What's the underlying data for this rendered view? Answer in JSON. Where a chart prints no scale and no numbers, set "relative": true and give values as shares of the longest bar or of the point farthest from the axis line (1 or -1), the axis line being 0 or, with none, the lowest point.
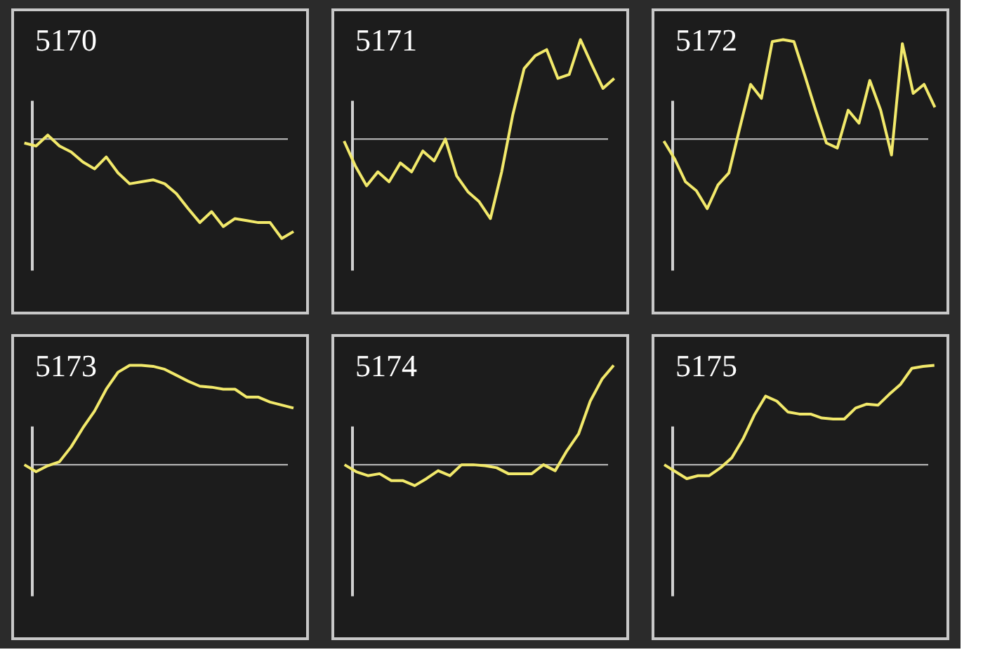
{
  "chart_data": [
    {
      "type": "line",
      "title": "5170",
      "relative": true,
      "color": "#f2e96b",
      "categories": [
        null,
        null,
        null,
        null,
        null,
        null,
        null,
        null,
        null,
        null,
        null,
        null,
        null,
        null,
        null,
        null,
        null,
        null,
        null,
        null,
        null,
        null,
        null,
        null
      ],
      "values": [
        -0.04,
        -0.07,
        0.04,
        -0.07,
        -0.13,
        -0.23,
        -0.3,
        -0.18,
        -0.34,
        -0.45,
        -0.43,
        -0.41,
        -0.45,
        -0.55,
        -0.7,
        -0.84,
        -0.73,
        -0.88,
        -0.8,
        -0.82,
        -0.84,
        -0.84,
        -1,
        -0.93
      ]
    },
    {
      "type": "line",
      "title": "5171",
      "relative": true,
      "color": "#f2e96b",
      "categories": [
        null,
        null,
        null,
        null,
        null,
        null,
        null,
        null,
        null,
        null,
        null,
        null,
        null,
        null,
        null,
        null,
        null,
        null,
        null,
        null,
        null,
        null,
        null,
        null,
        null
      ],
      "values": [
        -0.02,
        -0.27,
        -0.47,
        -0.33,
        -0.43,
        -0.24,
        -0.33,
        -0.12,
        -0.22,
        0,
        -0.37,
        -0.53,
        -0.63,
        -0.8,
        -0.33,
        0.25,
        0.71,
        0.84,
        0.9,
        0.61,
        0.65,
        1,
        0.75,
        0.51,
        0.61
      ]
    },
    {
      "type": "line",
      "title": "5172",
      "relative": true,
      "color": "#f2e96b",
      "categories": [
        null,
        null,
        null,
        null,
        null,
        null,
        null,
        null,
        null,
        null,
        null,
        null,
        null,
        null,
        null,
        null,
        null,
        null,
        null,
        null,
        null,
        null,
        null,
        null,
        null,
        null
      ],
      "values": [
        -0.02,
        -0.2,
        -0.43,
        -0.52,
        -0.7,
        -0.46,
        -0.34,
        0.11,
        0.55,
        0.41,
        0.98,
        1,
        0.98,
        0.64,
        0.29,
        -0.04,
        -0.09,
        0.29,
        0.16,
        0.59,
        0.29,
        -0.16,
        0.96,
        0.46,
        0.55,
        0.32
      ]
    },
    {
      "type": "line",
      "title": "5173",
      "relative": true,
      "color": "#f2e96b",
      "categories": [
        null,
        null,
        null,
        null,
        null,
        null,
        null,
        null,
        null,
        null,
        null,
        null,
        null,
        null,
        null,
        null,
        null,
        null,
        null,
        null,
        null,
        null,
        null,
        null
      ],
      "values": [
        0,
        -0.07,
        -0.01,
        0.03,
        0.18,
        0.37,
        0.54,
        0.76,
        0.93,
        1,
        1,
        0.99,
        0.96,
        0.9,
        0.84,
        0.79,
        0.78,
        0.76,
        0.76,
        0.68,
        0.68,
        0.63,
        0.6,
        0.57
      ]
    },
    {
      "type": "line",
      "title": "5174",
      "relative": true,
      "color": "#f2e96b",
      "categories": [
        null,
        null,
        null,
        null,
        null,
        null,
        null,
        null,
        null,
        null,
        null,
        null,
        null,
        null,
        null,
        null,
        null,
        null,
        null,
        null,
        null,
        null,
        null,
        null
      ],
      "values": [
        0,
        -0.07,
        -0.11,
        -0.09,
        -0.16,
        -0.16,
        -0.21,
        -0.14,
        -0.06,
        -0.11,
        0,
        0,
        -0.01,
        -0.03,
        -0.09,
        -0.09,
        -0.09,
        0,
        -0.06,
        0.14,
        0.31,
        0.64,
        0.86,
        1
      ]
    },
    {
      "type": "line",
      "title": "5175",
      "relative": true,
      "color": "#f2e96b",
      "categories": [
        null,
        null,
        null,
        null,
        null,
        null,
        null,
        null,
        null,
        null,
        null,
        null,
        null,
        null,
        null,
        null,
        null,
        null,
        null,
        null,
        null,
        null,
        null,
        null,
        null
      ],
      "values": [
        0,
        -0.07,
        -0.14,
        -0.11,
        -0.11,
        -0.03,
        0.07,
        0.26,
        0.5,
        0.69,
        0.64,
        0.53,
        0.51,
        0.51,
        0.47,
        0.46,
        0.46,
        0.57,
        0.61,
        0.6,
        0.71,
        0.81,
        0.97,
        0.99,
        1
      ]
    }
  ]
}
